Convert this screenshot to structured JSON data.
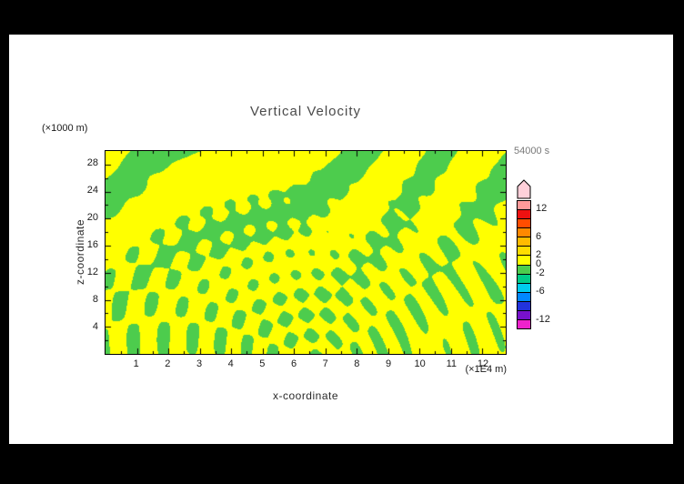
{
  "page": {
    "background": "#000000",
    "paper_color": "#ffffff"
  },
  "chart_data": {
    "type": "heatmap",
    "title": "Vertical Velocity",
    "time_label": "54000 s",
    "x_axis": {
      "label": "x-coordinate",
      "units": "(×1E4 m)",
      "range": [
        0,
        12.75
      ],
      "ticks": [
        1,
        2,
        3,
        4,
        5,
        6,
        7,
        8,
        9,
        10,
        11,
        12
      ],
      "minor_step": 0.5
    },
    "z_axis": {
      "label": "z-coordinate",
      "units": "(×1000 m)",
      "range": [
        0,
        30
      ],
      "ticks": [
        4,
        8,
        12,
        16,
        20,
        24,
        28
      ],
      "minor_step": 2
    },
    "colorbar": {
      "range": [
        -14,
        14
      ],
      "tick_labels": [
        12,
        6,
        2,
        0,
        -2,
        -6,
        -12
      ],
      "arrow_color": "#ffd0da",
      "segment_colors_top_to_bottom": [
        "#ff9999",
        "#ee1111",
        "#ff4d00",
        "#ff8800",
        "#ffbb00",
        "#ffdd00",
        "#ffff00",
        "#4dcc4d",
        "#00cc88",
        "#00ccee",
        "#0088ff",
        "#2233dd",
        "#7711cc",
        "#ee22cc"
      ]
    },
    "field": {
      "note": "filled contours: yellow = weakly positive (0 to 2), green = weakly negative (-2 to 0); wavy bands aloft, fine fan-like striations below",
      "color_positive": "#ffff00",
      "color_negative": "#4dcc4d",
      "pattern": {
        "a1": 3.2,
        "b1": 1.8,
        "m1": 2.2,
        "c1": 1.05,
        "d1": 0.15,
        "a2": 15.0,
        "b2": 2.4,
        "m2": 4.5,
        "c2": 0.8,
        "d2": 0.55,
        "sx": 0.52,
        "sy": -0.08,
        "rx": 1.7,
        "ry": 1.15,
        "a3": 8.5,
        "d3": 0.4,
        "topPow": 1.4,
        "w2": 0.6,
        "w3": 0.6,
        "threshold": -0.22
      }
    }
  }
}
